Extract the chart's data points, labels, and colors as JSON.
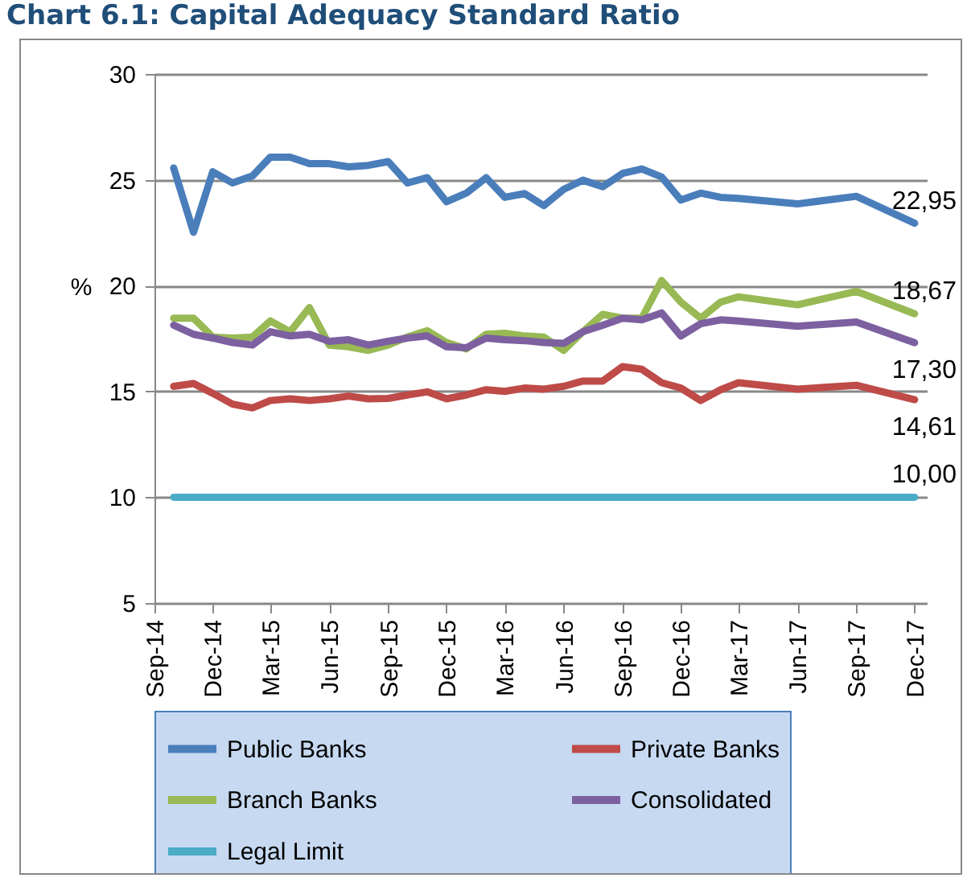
{
  "chart_data": {
    "type": "line",
    "title": "Chart 6.1: Capital Adequacy Standard Ratio",
    "ylabel": "%",
    "x": [
      "2014-10",
      "2014-11",
      "2014-12",
      "2015-01",
      "2015-02",
      "2015-03",
      "2015-04",
      "2015-05",
      "2015-06",
      "2015-07",
      "2015-08",
      "2015-09",
      "2015-10",
      "2015-11",
      "2015-12",
      "2016-01",
      "2016-02",
      "2016-03",
      "2016-04",
      "2016-05",
      "2016-06",
      "2016-07",
      "2016-08",
      "2016-09",
      "2016-10",
      "2016-11",
      "2016-12",
      "2017-01",
      "2017-02",
      "2017-03",
      "2017-06",
      "2017-09",
      "2017-12"
    ],
    "series": [
      {
        "name": "Public Banks",
        "color": "#4a7ebb",
        "values": [
          25.56,
          22.52,
          25.38,
          24.85,
          25.18,
          26.07,
          26.07,
          25.76,
          25.76,
          25.61,
          25.68,
          25.86,
          24.85,
          25.1,
          23.96,
          24.37,
          25.1,
          24.17,
          24.35,
          23.78,
          24.55,
          24.98,
          24.67,
          25.3,
          25.51,
          25.13,
          24.04,
          24.37,
          24.17,
          24.12,
          23.86,
          24.22,
          22.95
        ],
        "value_labels": [
          null,
          null,
          null,
          null,
          null,
          null,
          null,
          null,
          null,
          null,
          null,
          null,
          null,
          null,
          null,
          null,
          null,
          null,
          null,
          null,
          null,
          null,
          null,
          null,
          null,
          null,
          null,
          null,
          null,
          null,
          null,
          null,
          "22,95"
        ]
      },
      {
        "name": "Private Banks",
        "color": "#be4b48",
        "values": [
          15.24,
          15.37,
          14.91,
          14.4,
          14.22,
          14.57,
          14.65,
          14.57,
          14.65,
          14.78,
          14.65,
          14.67,
          14.83,
          14.98,
          14.65,
          14.83,
          15.08,
          15.0,
          15.16,
          15.11,
          15.24,
          15.49,
          15.49,
          16.17,
          16.05,
          15.41,
          15.16,
          14.57,
          15.08,
          15.41,
          15.11,
          15.29,
          14.61
        ],
        "value_labels": [
          null,
          null,
          null,
          null,
          null,
          null,
          null,
          null,
          null,
          null,
          null,
          null,
          null,
          null,
          null,
          null,
          null,
          null,
          null,
          null,
          null,
          null,
          null,
          null,
          null,
          null,
          null,
          null,
          null,
          null,
          null,
          null,
          "14,61"
        ]
      },
      {
        "name": "Branch Banks",
        "color": "#98b954",
        "values": [
          18.46,
          18.46,
          17.57,
          17.52,
          17.57,
          18.33,
          17.82,
          18.96,
          17.19,
          17.11,
          16.94,
          17.19,
          17.57,
          17.87,
          17.31,
          17.01,
          17.7,
          17.75,
          17.62,
          17.57,
          16.94,
          17.82,
          18.64,
          18.46,
          18.46,
          20.24,
          19.22,
          18.46,
          19.22,
          19.47,
          19.09,
          19.73,
          18.67
        ],
        "value_labels": [
          null,
          null,
          null,
          null,
          null,
          null,
          null,
          null,
          null,
          null,
          null,
          null,
          null,
          null,
          null,
          null,
          null,
          null,
          null,
          null,
          null,
          null,
          null,
          null,
          null,
          null,
          null,
          null,
          null,
          null,
          null,
          null,
          "18,67"
        ]
      },
      {
        "name": "Consolidated",
        "color": "#7d60a0",
        "values": [
          18.13,
          17.7,
          17.52,
          17.31,
          17.19,
          17.82,
          17.62,
          17.7,
          17.37,
          17.44,
          17.19,
          17.37,
          17.52,
          17.62,
          17.11,
          17.06,
          17.52,
          17.44,
          17.4,
          17.31,
          17.27,
          17.82,
          18.13,
          18.46,
          18.38,
          18.71,
          17.62,
          18.2,
          18.38,
          18.33,
          18.08,
          18.28,
          17.3
        ],
        "value_labels": [
          null,
          null,
          null,
          null,
          null,
          null,
          null,
          null,
          null,
          null,
          null,
          null,
          null,
          null,
          null,
          null,
          null,
          null,
          null,
          null,
          null,
          null,
          null,
          null,
          null,
          null,
          null,
          null,
          null,
          null,
          null,
          null,
          "17,30"
        ]
      },
      {
        "name": "Legal Limit",
        "color": "#4bacc6",
        "x": [
          "2014-10",
          "2017-12"
        ],
        "values": [
          10,
          10
        ],
        "value_labels": [
          null,
          "10,00"
        ]
      }
    ],
    "xlim": [
      "2014-09",
      "2017-12-20"
    ],
    "xticks": [
      {
        "value": "2014-09",
        "label": "Sep-14"
      },
      {
        "value": "2014-12",
        "label": "Dec-14"
      },
      {
        "value": "2015-03",
        "label": "Mar-15"
      },
      {
        "value": "2015-06",
        "label": "Jun-15"
      },
      {
        "value": "2015-09",
        "label": "Sep-15"
      },
      {
        "value": "2015-12",
        "label": "Dec-15"
      },
      {
        "value": "2016-03",
        "label": "Mar-16"
      },
      {
        "value": "2016-06",
        "label": "Jun-16"
      },
      {
        "value": "2016-09",
        "label": "Sep-16"
      },
      {
        "value": "2016-12",
        "label": "Dec-16"
      },
      {
        "value": "2017-03",
        "label": "Mar-17"
      },
      {
        "value": "2017-06",
        "label": "Jun-17"
      },
      {
        "value": "2017-09",
        "label": "Sep-17"
      },
      {
        "value": "2017-12",
        "label": "Dec-17"
      }
    ],
    "ylim": [
      5,
      30
    ],
    "yticks": [
      5,
      10,
      15,
      20,
      25,
      30
    ],
    "grid": "y",
    "legend": "bottom"
  }
}
